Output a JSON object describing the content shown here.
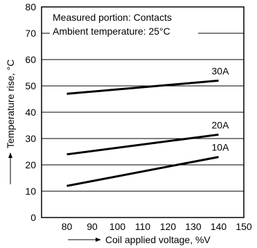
{
  "chart_data": {
    "type": "line",
    "xlabel": "Coil applied voltage, %V",
    "ylabel": "Temperature rise, °C",
    "xlim": [
      70,
      150
    ],
    "ylim": [
      0,
      80
    ],
    "x_ticks": [
      80,
      90,
      100,
      110,
      120,
      130,
      140,
      150
    ],
    "y_ticks": [
      0,
      10,
      20,
      30,
      40,
      50,
      60,
      70,
      80
    ],
    "grid": true,
    "annotations": [
      "Measured portion: Contacts",
      "Ambient temperature: 25°C"
    ],
    "series": [
      {
        "name": "30A",
        "x": [
          80,
          140
        ],
        "y": [
          47,
          52
        ]
      },
      {
        "name": "20A",
        "x": [
          80,
          140
        ],
        "y": [
          24,
          31.5
        ]
      },
      {
        "name": "10A",
        "x": [
          80,
          140
        ],
        "y": [
          12,
          23
        ]
      }
    ]
  }
}
